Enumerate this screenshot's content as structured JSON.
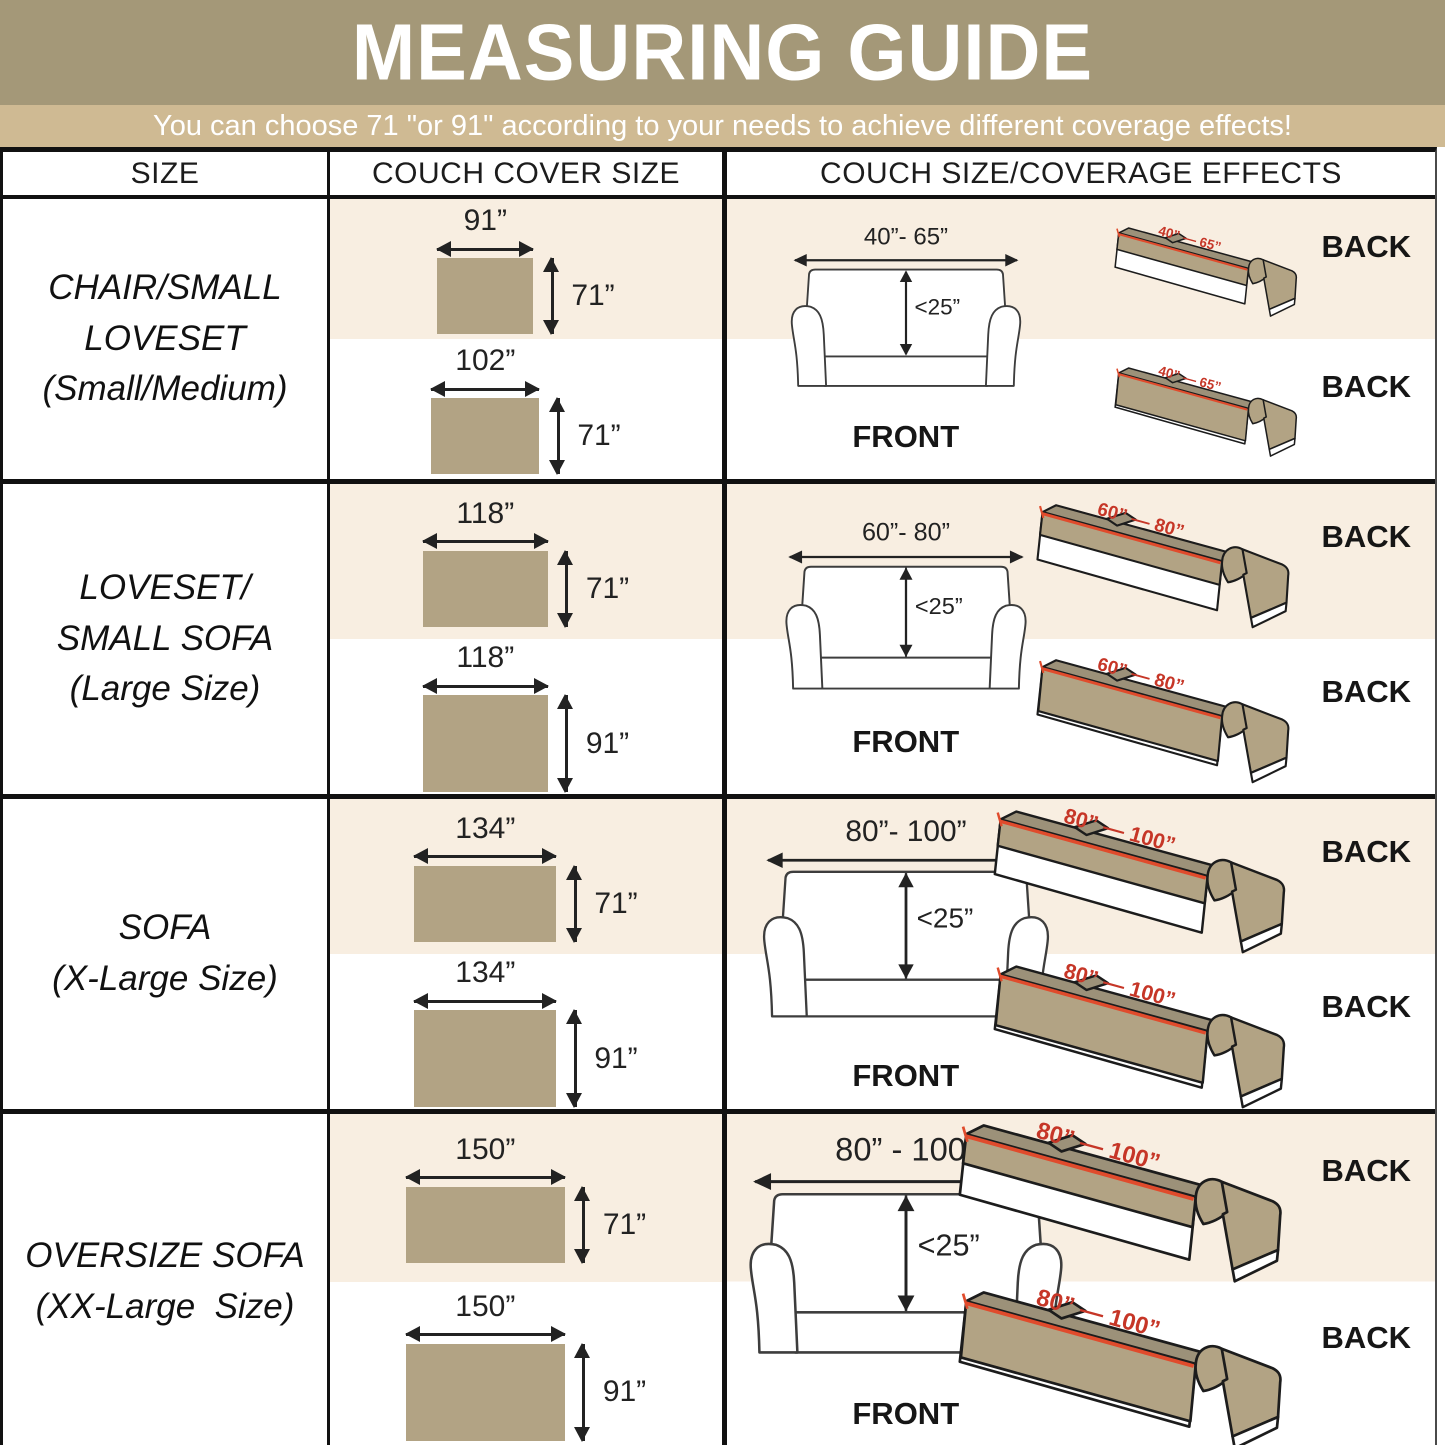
{
  "header": {
    "title": "MEASURING GUIDE",
    "subtitle": "You can choose 71 \"or 91\" according to your needs to achieve different coverage effects!"
  },
  "table": {
    "columns": [
      "SIZE",
      "COUCH COVER SIZE",
      "COUCH SIZE/COVERAGE EFFECTS"
    ]
  },
  "colors": {
    "title_bg": "#a49878",
    "subtitle_bg": "#cfba93",
    "cream": "#f8eee1",
    "cover_fill": "#b2a384",
    "topface": "#9c9179",
    "line_red": "#e04b2c",
    "text_red": "#c63627"
  },
  "rows": [
    {
      "size_label": "CHAIR/SMALL\nLOVESET\n(Small/Medium)",
      "covers": [
        {
          "width_label": "91”",
          "height_label": "71”",
          "w_in": 91,
          "h_in": 71
        },
        {
          "width_label": "102”",
          "height_label": "71”",
          "w_in": 102,
          "h_in": 71
        }
      ],
      "front": {
        "width_label": "40”- 65”",
        "depth_label": "<25”",
        "label": "FRONT",
        "divider": false
      },
      "backs": [
        {
          "dim_label": "40” — 65”",
          "label": "BACK",
          "coverage": "partial"
        },
        {
          "dim_label": "40” — 65”",
          "label": "BACK",
          "coverage": "full"
        }
      ]
    },
    {
      "size_label": "LOVESET/\nSMALL SOFA\n(Large Size)",
      "covers": [
        {
          "width_label": "118”",
          "height_label": "71”",
          "w_in": 118,
          "h_in": 71
        },
        {
          "width_label": "118”",
          "height_label": "91”",
          "w_in": 118,
          "h_in": 91
        }
      ],
      "front": {
        "width_label": "60”- 80”",
        "depth_label": "<25”",
        "label": "FRONT",
        "divider": true
      },
      "backs": [
        {
          "dim_label": "60” — 80”",
          "label": "BACK",
          "coverage": "partial"
        },
        {
          "dim_label": "60” — 80”",
          "label": "BACK",
          "coverage": "full"
        }
      ]
    },
    {
      "size_label": "SOFA\n(X-Large Size)",
      "covers": [
        {
          "width_label": "134”",
          "height_label": "71”",
          "w_in": 134,
          "h_in": 71
        },
        {
          "width_label": "134”",
          "height_label": "91”",
          "w_in": 134,
          "h_in": 91
        }
      ],
      "front": {
        "width_label": "80”- 100”",
        "depth_label": "<25”",
        "label": "FRONT",
        "divider": true
      },
      "backs": [
        {
          "dim_label": "80” — 100”",
          "label": "BACK",
          "coverage": "partial"
        },
        {
          "dim_label": "80” — 100”",
          "label": "BACK",
          "coverage": "full"
        }
      ]
    },
    {
      "size_label": "OVERSIZE SOFA\n(XX-Large  Size)",
      "covers": [
        {
          "width_label": "150”",
          "height_label": "71”",
          "w_in": 150,
          "h_in": 71
        },
        {
          "width_label": "150”",
          "height_label": "91”",
          "w_in": 150,
          "h_in": 91
        }
      ],
      "front": {
        "width_label": "80” - 100”",
        "depth_label": "<25”",
        "label": "FRONT",
        "divider": true
      },
      "backs": [
        {
          "dim_label": "80” — 100”",
          "label": "BACK",
          "coverage": "partial"
        },
        {
          "dim_label": "80” — 100”",
          "label": "BACK",
          "coverage": "full"
        }
      ]
    }
  ]
}
